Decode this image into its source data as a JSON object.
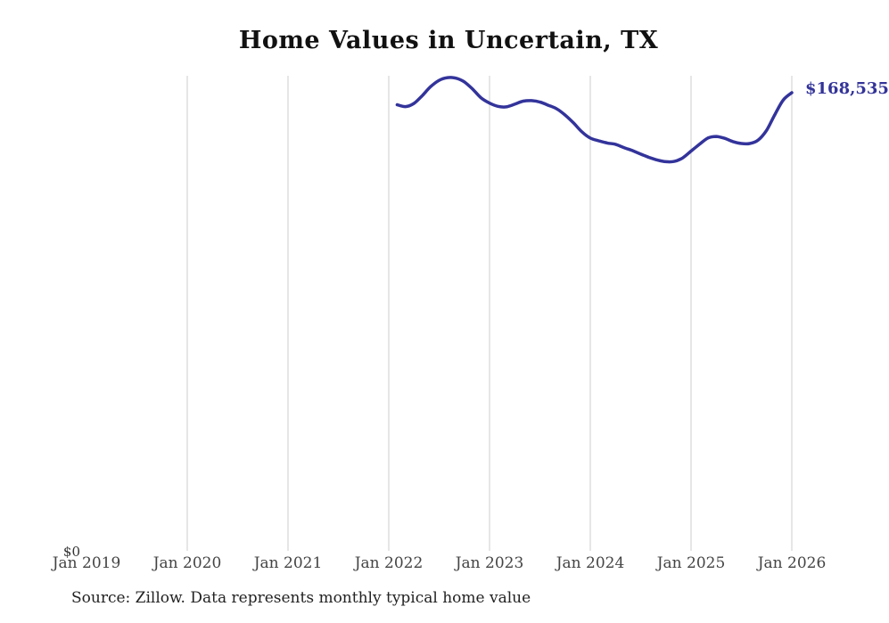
{
  "title": "Home Values in Uncertain, TX",
  "end_label": "$168,535",
  "source_note": "Source: Zillow. Data represents monthly typical home value",
  "y_axis": {
    "zero_label": "$0"
  },
  "x_axis": {
    "labels": [
      "Jan 2019",
      "Jan 2020",
      "Jan 2021",
      "Jan 2022",
      "Jan 2023",
      "Jan 2024",
      "Jan 2025",
      "Jan 2026"
    ]
  },
  "colors": {
    "line": "#33339b",
    "grid": "#cccccc",
    "title_text": "#111111",
    "axis_text": "#444444",
    "source_text": "#222222",
    "end_label_text": "#333399"
  },
  "chart_data": {
    "type": "line",
    "title": "Home Values in Uncertain, TX",
    "series_name": "Monthly typical home value",
    "xlabel": "",
    "ylabel": "",
    "ylim": [
      0,
      175000
    ],
    "x_tick_labels": [
      "Jan 2019",
      "Jan 2020",
      "Jan 2021",
      "Jan 2022",
      "Jan 2023",
      "Jan 2024",
      "Jan 2025",
      "Jan 2026"
    ],
    "grid": "vertical",
    "legend": "none",
    "last_point_label": "$168,535",
    "x": [
      "2022-02",
      "2022-03",
      "2022-04",
      "2022-05",
      "2022-06",
      "2022-07",
      "2022-08",
      "2022-09",
      "2022-10",
      "2022-11",
      "2022-12",
      "2023-01",
      "2023-02",
      "2023-03",
      "2023-04",
      "2023-05",
      "2023-06",
      "2023-07",
      "2023-08",
      "2023-09",
      "2023-10",
      "2023-11",
      "2023-12",
      "2024-01",
      "2024-02",
      "2024-03",
      "2024-04",
      "2024-05",
      "2024-06",
      "2024-07",
      "2024-08",
      "2024-09",
      "2024-10",
      "2024-11",
      "2024-12",
      "2025-01",
      "2025-02",
      "2025-03",
      "2025-04",
      "2025-05",
      "2025-06",
      "2025-07",
      "2025-08",
      "2025-09",
      "2025-10",
      "2025-11",
      "2025-12",
      "2026-01"
    ],
    "values": [
      164100,
      163400,
      164600,
      167500,
      170800,
      173100,
      174100,
      173900,
      172500,
      169800,
      166600,
      164700,
      163500,
      163300,
      164300,
      165400,
      165600,
      165100,
      163900,
      162600,
      160300,
      157400,
      154100,
      151800,
      150800,
      150000,
      149500,
      148300,
      147200,
      145900,
      144700,
      143700,
      143100,
      143200,
      144500,
      147000,
      149500,
      151800,
      152400,
      151700,
      150500,
      149800,
      149800,
      151100,
      154700,
      160600,
      165900,
      168535
    ]
  }
}
